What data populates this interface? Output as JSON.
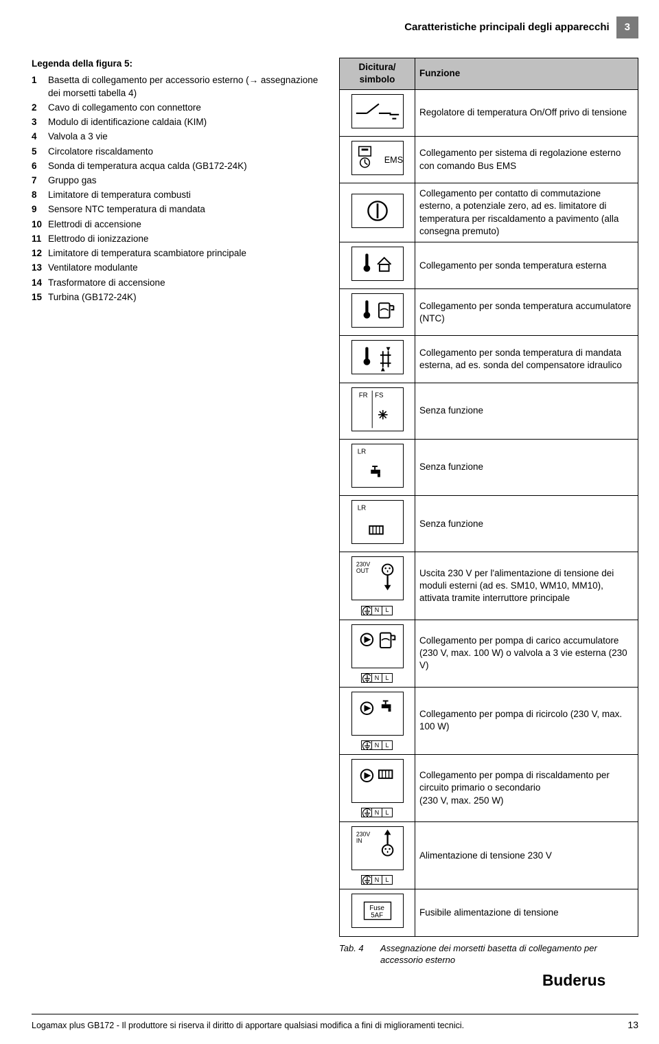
{
  "header": {
    "title": "Caratteristiche principali degli apparecchi",
    "section_number": "3"
  },
  "legend": {
    "title": "Legenda della figura 5:",
    "items": [
      {
        "n": "1",
        "t": "Basetta di collegamento per accessorio esterno (→ assegnazione dei morsetti tabella 4)"
      },
      {
        "n": "2",
        "t": "Cavo di collegamento con connettore"
      },
      {
        "n": "3",
        "t": "Modulo di identificazione caldaia (KIM)"
      },
      {
        "n": "4",
        "t": "Valvola a 3 vie"
      },
      {
        "n": "5",
        "t": "Circolatore riscaldamento"
      },
      {
        "n": "6",
        "t": "Sonda di temperatura acqua calda (GB172-24K)"
      },
      {
        "n": "7",
        "t": "Gruppo gas"
      },
      {
        "n": "8",
        "t": "Limitatore di temperatura combusti"
      },
      {
        "n": "9",
        "t": "Sensore NTC temperatura di mandata"
      },
      {
        "n": "10",
        "t": "Elettrodi di accensione"
      },
      {
        "n": "11",
        "t": "Elettrodo di ionizzazione"
      },
      {
        "n": "12",
        "t": "Limitatore di temperatura scambiatore principale"
      },
      {
        "n": "13",
        "t": "Ventilatore modulante"
      },
      {
        "n": "14",
        "t": "Trasformatore di accensione"
      },
      {
        "n": "15",
        "t": "Turbina (GB172-24K)"
      }
    ]
  },
  "table": {
    "head_sym_l1": "Dicitura/",
    "head_sym_l2": "simbolo",
    "head_fun": "Funzione",
    "rows": [
      {
        "icon": "switch",
        "label": "",
        "fun": "Regolatore di temperatura On/Off privo di tensione"
      },
      {
        "icon": "ems",
        "label": "EMS",
        "fun": "Collegamento per sistema di regolazione esterno con comando Bus EMS"
      },
      {
        "icon": "circle-bar",
        "label": "",
        "fun": "Collegamento per contatto di commutazione esterno, a potenziale zero, ad es. limitatore di temperatura per riscaldamento a pavimento (alla consegna premuto)"
      },
      {
        "icon": "temp-house",
        "label": "",
        "fun": "Collegamento per sonda temperatura esterna"
      },
      {
        "icon": "temp-tank",
        "label": "",
        "fun": "Collegamento per sonda temperatura accumulatore (NTC)"
      },
      {
        "icon": "temp-flow",
        "label": "",
        "fun": "Collegamento per sonda temperatura di mandata esterna, ad es. sonda del compensatore idraulico"
      },
      {
        "icon": "frfs",
        "label": "FR FS",
        "fun": "Senza funzione"
      },
      {
        "icon": "lr-tap",
        "label": "LR",
        "fun": "Senza funzione"
      },
      {
        "icon": "lr-rad",
        "label": "LR",
        "fun": "Senza funzione"
      },
      {
        "icon": "230out",
        "label": "230V OUT",
        "nl": true,
        "fun": "Uscita 230 V per l'alimentazione di tensione dei moduli esterni (ad es. SM10, WM10, MM10), attivata tramite interruttore principale"
      },
      {
        "icon": "pump-tank",
        "label": "",
        "nl": true,
        "fun": "Collegamento per pompa di carico accumulatore (230 V, max. 100 W) o valvola a 3 vie esterna (230 V)"
      },
      {
        "icon": "pump-tap",
        "label": "",
        "nl": true,
        "fun": "Collegamento per pompa di ricircolo (230 V, max. 100 W)"
      },
      {
        "icon": "pump-rad",
        "label": "",
        "nl": true,
        "fun": "Collegamento per pompa di riscaldamento per circuito primario o secondario\n(230 V, max. 250 W)"
      },
      {
        "icon": "230in",
        "label": "230V IN",
        "nl": true,
        "fun": "Alimentazione di tensione 230 V"
      },
      {
        "icon": "fuse",
        "label": "Fuse 5AF",
        "fun": "Fusibile alimentazione di tensione"
      }
    ],
    "caption_num": "Tab. 4",
    "caption_text": "Assegnazione dei morsetti basetta di collegamento per accessorio esterno"
  },
  "footer": {
    "left": "Logamax plus GB172 - Il produttore si riserva il diritto di apportare qualsiasi modifica a fini di miglioramenti tecnici.",
    "page": "13",
    "brand": "Buderus"
  },
  "colors": {
    "header_gray": "#7a7a7a",
    "table_head": "#c0c0c0",
    "text": "#000000"
  }
}
